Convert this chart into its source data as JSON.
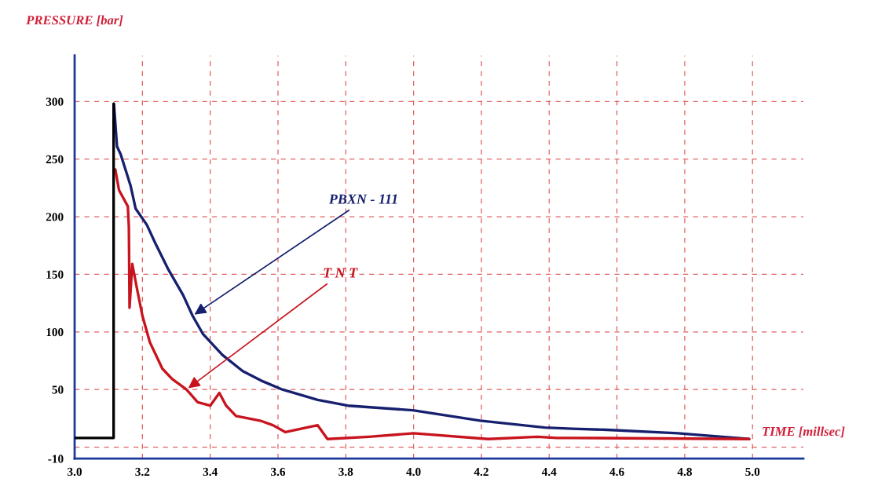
{
  "chart_data": {
    "type": "line",
    "xlabel": "TIME [millsec]",
    "ylabel": "PRESSURE [bar]",
    "xlim": [
      3.0,
      5.15
    ],
    "ylim": [
      -10,
      340
    ],
    "xticks": [
      {
        "value": 3.0,
        "label": "3.0"
      },
      3.2,
      3.4,
      3.6,
      3.8,
      {
        "value": 4.0,
        "label": "4.0"
      },
      4.2,
      4.4,
      4.6,
      4.8,
      {
        "value": 5.0,
        "label": "5.0"
      }
    ],
    "yticks": [
      -10,
      {
        "value": 0,
        "label": null
      },
      50,
      100,
      150,
      200,
      250,
      300
    ],
    "grid": true,
    "line_style": "solid",
    "marker": "none",
    "series": [
      {
        "name": "PBXN - 111",
        "color": "#16206e",
        "x": [
          3.116,
          3.125,
          3.136,
          3.165,
          3.18,
          3.213,
          3.238,
          3.275,
          3.32,
          3.348,
          3.379,
          3.436,
          3.496,
          3.556,
          3.613,
          3.717,
          3.806,
          3.998,
          4.197,
          4.387,
          4.468,
          4.57,
          4.78,
          4.99
        ],
        "values": [
          298,
          261,
          254,
          227,
          207,
          193,
          177,
          155,
          132,
          114,
          98,
          80,
          66,
          57,
          50,
          41,
          36,
          32,
          23,
          17,
          16,
          15,
          12,
          7
        ]
      },
      {
        "name": "T N T",
        "color": "#c8141e",
        "x": [
          3.12,
          3.131,
          3.157,
          3.16,
          3.162,
          3.17,
          3.185,
          3.2,
          3.222,
          3.259,
          3.288,
          3.33,
          3.363,
          3.4,
          3.427,
          3.447,
          3.476,
          3.547,
          3.585,
          3.622,
          3.717,
          3.746,
          3.868,
          4.0,
          4.22,
          4.365,
          4.424,
          4.468,
          4.99
        ],
        "values": [
          241,
          223,
          209,
          191,
          121,
          159,
          136,
          114,
          91,
          68,
          59,
          50,
          39,
          36,
          47,
          36,
          27,
          23,
          19,
          13,
          19,
          7,
          9,
          12,
          7,
          9,
          8,
          8,
          7
        ]
      },
      {
        "color": "#000000",
        "x": [
          3.0,
          3.115,
          3.115
        ],
        "values": [
          8,
          8,
          298
        ]
      }
    ]
  }
}
